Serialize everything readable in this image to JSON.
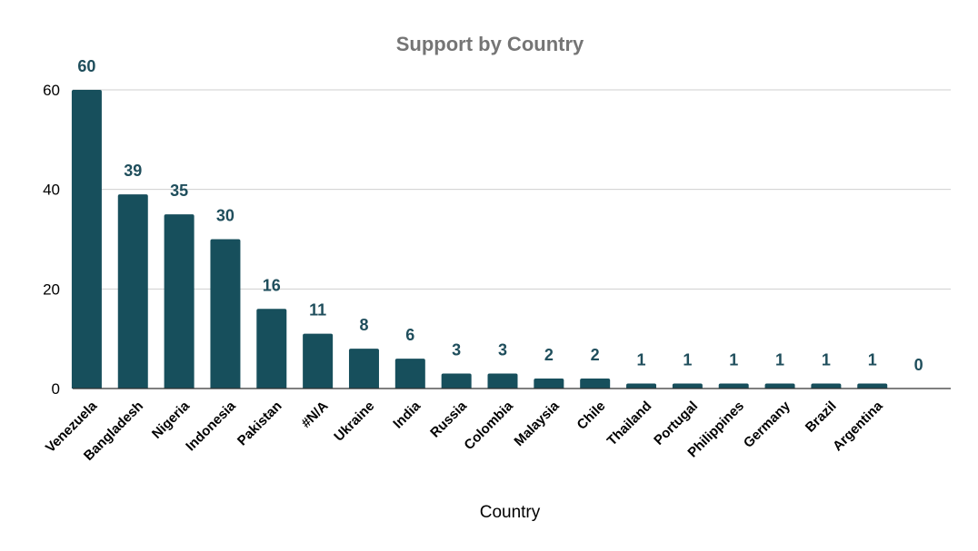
{
  "chart_data": {
    "type": "bar",
    "title": "Support by Country",
    "xlabel": "Country",
    "ylabel": "",
    "ylim": [
      0,
      60
    ],
    "yticks": [
      0,
      20,
      40,
      60
    ],
    "grid": true,
    "legend": "none",
    "categories": [
      "Venezuela",
      "Bangladesh",
      "Nigeria",
      "Indonesia",
      "Pakistan",
      "#N/A",
      "Ukraine",
      "India",
      "Russia",
      "Colombia",
      "Malaysia",
      "Chile",
      "Thailand",
      "Portugal",
      "Philippines",
      "Germany",
      "Brazil",
      "Argentina"
    ],
    "values": [
      60,
      39,
      35,
      30,
      16,
      11,
      8,
      6,
      3,
      3,
      2,
      2,
      1,
      1,
      1,
      1,
      1,
      1
    ],
    "extra_labels": [
      "0"
    ],
    "colors": {
      "bar": "#174f5c",
      "data_label": "#1f4e5c",
      "title": "#757575",
      "grid": "#cfcfcf"
    }
  }
}
